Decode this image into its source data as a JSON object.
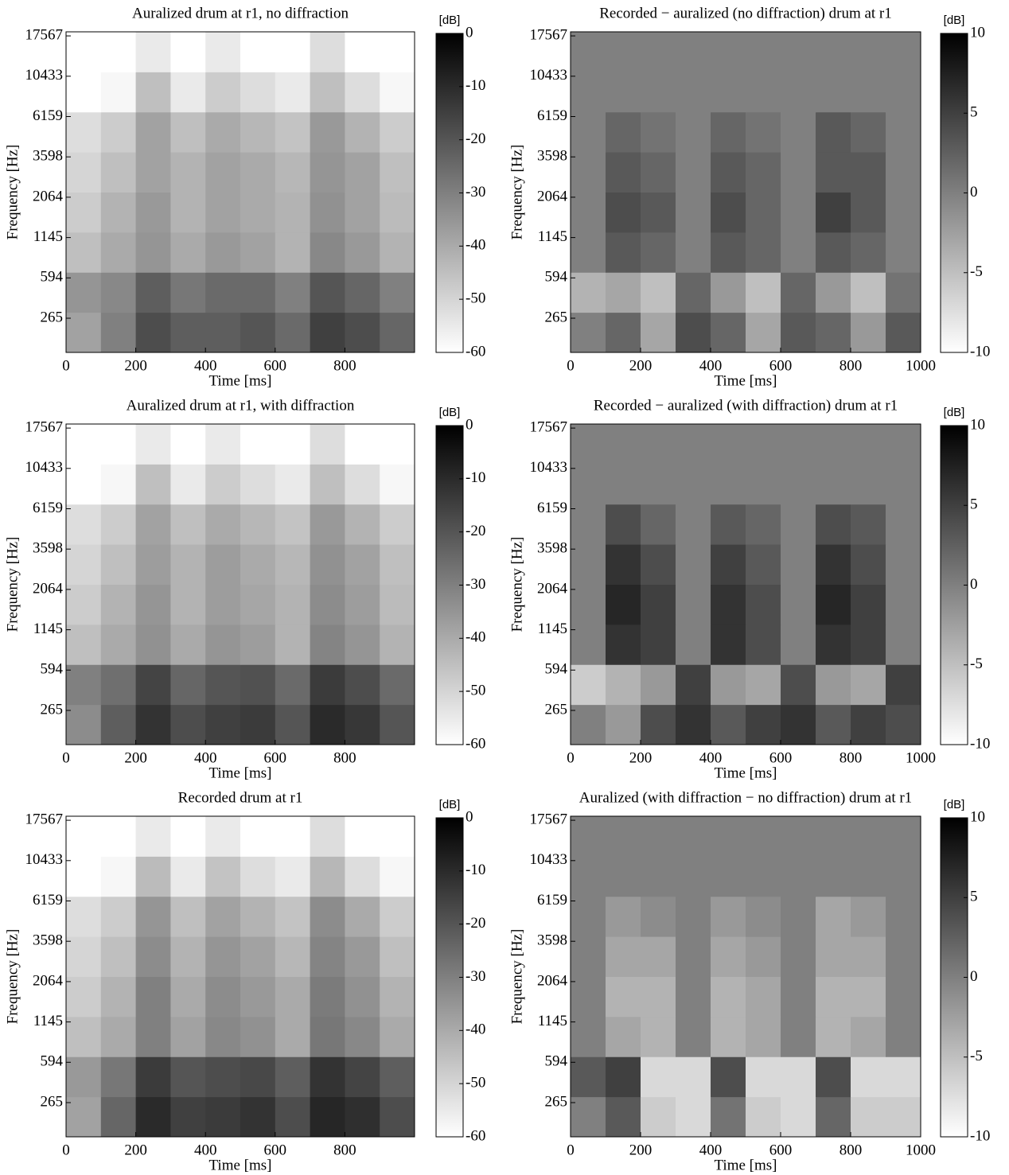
{
  "chart_data": [
    {
      "type": "heatmap",
      "title": "Auralized drum at r1, no diffraction",
      "xlabel": "Time [ms]",
      "ylabel": "Frequency [Hz]",
      "xlim": [
        0,
        1000
      ],
      "xticks": [
        0,
        200,
        400,
        600,
        800
      ],
      "yticks": [
        265,
        594,
        1145,
        2064,
        3598,
        6159,
        10433,
        17567
      ],
      "x": [
        50,
        150,
        250,
        350,
        450,
        550,
        650,
        750,
        850,
        950
      ],
      "colormap": "gray_r",
      "clim": [
        -60,
        0
      ],
      "cticks": [
        0,
        -10,
        -20,
        -30,
        -40,
        -50,
        -60
      ],
      "clabel": "[dB]",
      "z": [
        [
          -38,
          -30,
          -18,
          -22,
          -22,
          -20,
          -25,
          -15,
          -18,
          -24
        ],
        [
          -35,
          -32,
          -22,
          -28,
          -25,
          -25,
          -30,
          -20,
          -24,
          -30
        ],
        [
          -45,
          -40,
          -35,
          -40,
          -36,
          -38,
          -42,
          -32,
          -36,
          -42
        ],
        [
          -48,
          -42,
          -36,
          -42,
          -38,
          -40,
          -42,
          -34,
          -38,
          -44
        ],
        [
          -50,
          -45,
          -38,
          -42,
          -38,
          -40,
          -43,
          -35,
          -38,
          -45
        ],
        [
          -52,
          -48,
          -38,
          -45,
          -40,
          -43,
          -46,
          -36,
          -42,
          -48
        ],
        [
          -60,
          -58,
          -45,
          -55,
          -48,
          -52,
          -55,
          -45,
          -52,
          -58
        ],
        [
          -60,
          -60,
          -55,
          -60,
          -55,
          -60,
          -60,
          -52,
          -60,
          -60
        ]
      ]
    },
    {
      "type": "heatmap",
      "title": "Recorded − auralized (no diffraction) drum at r1",
      "xlabel": "Time [ms]",
      "ylabel": "Frequency [Hz]",
      "xlim": [
        0,
        1000
      ],
      "xticks": [
        0,
        200,
        400,
        600,
        800,
        1000
      ],
      "yticks": [
        265,
        594,
        1145,
        2064,
        3598,
        6159,
        10433,
        17567
      ],
      "x": [
        50,
        150,
        250,
        350,
        450,
        550,
        650,
        750,
        850,
        950
      ],
      "colormap": "gray_r",
      "clim": [
        -10,
        10
      ],
      "cticks": [
        10,
        5,
        0,
        -5,
        -10
      ],
      "clabel": "[dB]",
      "z": [
        [
          0,
          2,
          -3,
          4,
          2,
          -3,
          3,
          2,
          -2,
          3
        ],
        [
          -4,
          -3,
          -5,
          2,
          -2,
          -5,
          2,
          -2,
          -5,
          1
        ],
        [
          0,
          3,
          2,
          0,
          3,
          2,
          0,
          3,
          2,
          0
        ],
        [
          0,
          4,
          3,
          0,
          4,
          2,
          0,
          5,
          3,
          0
        ],
        [
          0,
          3,
          2,
          0,
          3,
          2,
          0,
          3,
          3,
          0
        ],
        [
          0,
          2,
          1,
          0,
          2,
          1,
          0,
          3,
          2,
          0
        ],
        [
          0,
          0,
          0,
          0,
          0,
          0,
          0,
          0,
          0,
          0
        ],
        [
          0,
          0,
          0,
          0,
          0,
          0,
          0,
          0,
          0,
          0
        ]
      ]
    },
    {
      "type": "heatmap",
      "title": "Auralized drum at r1, with diffraction",
      "xlabel": "Time [ms]",
      "ylabel": "Frequency [Hz]",
      "xlim": [
        0,
        1000
      ],
      "xticks": [
        0,
        200,
        400,
        600,
        800
      ],
      "yticks": [
        265,
        594,
        1145,
        2064,
        3598,
        6159,
        10433,
        17567
      ],
      "x": [
        50,
        150,
        250,
        350,
        450,
        550,
        650,
        750,
        850,
        950
      ],
      "colormap": "gray_r",
      "clim": [
        -60,
        0
      ],
      "cticks": [
        0,
        -10,
        -20,
        -30,
        -40,
        -50,
        -60
      ],
      "clabel": "[dB]",
      "z": [
        [
          -33,
          -22,
          -12,
          -18,
          -15,
          -14,
          -20,
          -10,
          -13,
          -20
        ],
        [
          -30,
          -26,
          -16,
          -24,
          -20,
          -19,
          -25,
          -14,
          -18,
          -25
        ],
        [
          -45,
          -40,
          -34,
          -40,
          -35,
          -37,
          -42,
          -31,
          -35,
          -42
        ],
        [
          -48,
          -42,
          -35,
          -42,
          -37,
          -39,
          -42,
          -33,
          -37,
          -44
        ],
        [
          -50,
          -45,
          -37,
          -42,
          -37,
          -40,
          -43,
          -34,
          -38,
          -45
        ],
        [
          -52,
          -48,
          -38,
          -45,
          -40,
          -43,
          -46,
          -36,
          -42,
          -48
        ],
        [
          -60,
          -58,
          -45,
          -55,
          -48,
          -52,
          -55,
          -45,
          -52,
          -58
        ],
        [
          -60,
          -60,
          -55,
          -60,
          -55,
          -60,
          -60,
          -52,
          -60,
          -60
        ]
      ]
    },
    {
      "type": "heatmap",
      "title": "Recorded − auralized (with diffraction) drum at r1",
      "xlabel": "Time [ms]",
      "ylabel": "Frequency [Hz]",
      "xlim": [
        0,
        1000
      ],
      "xticks": [
        0,
        200,
        400,
        600,
        800,
        1000
      ],
      "yticks": [
        265,
        594,
        1145,
        2064,
        3598,
        6159,
        10433,
        17567
      ],
      "x": [
        50,
        150,
        250,
        350,
        450,
        550,
        650,
        750,
        850,
        950
      ],
      "colormap": "gray_r",
      "clim": [
        -10,
        10
      ],
      "cticks": [
        10,
        5,
        0,
        -5,
        -10
      ],
      "clabel": "[dB]",
      "z": [
        [
          0,
          -2,
          4,
          6,
          3,
          5,
          6,
          3,
          5,
          4
        ],
        [
          -6,
          -4,
          -2,
          5,
          -2,
          -3,
          4,
          -2,
          -3,
          5
        ],
        [
          0,
          6,
          5,
          0,
          6,
          4,
          0,
          6,
          5,
          0
        ],
        [
          0,
          7,
          5,
          0,
          6,
          4,
          0,
          7,
          5,
          0
        ],
        [
          0,
          6,
          4,
          0,
          5,
          3,
          0,
          6,
          4,
          0
        ],
        [
          0,
          4,
          2,
          0,
          3,
          2,
          0,
          4,
          3,
          0
        ],
        [
          0,
          0,
          0,
          0,
          0,
          0,
          0,
          0,
          0,
          0
        ],
        [
          0,
          0,
          0,
          0,
          0,
          0,
          0,
          0,
          0,
          0
        ]
      ]
    },
    {
      "type": "heatmap",
      "title": "Recorded drum at r1",
      "xlabel": "Time [ms]",
      "ylabel": "Frequency [Hz]",
      "xlim": [
        0,
        1000
      ],
      "xticks": [
        0,
        200,
        400,
        600,
        800
      ],
      "yticks": [
        265,
        594,
        1145,
        2064,
        3598,
        6159,
        10433,
        17567
      ],
      "x": [
        50,
        150,
        250,
        350,
        450,
        550,
        650,
        750,
        850,
        950
      ],
      "colormap": "gray_r",
      "clim": [
        -60,
        0
      ],
      "cticks": [
        0,
        -10,
        -20,
        -30,
        -40,
        -50,
        -60
      ],
      "clabel": "[dB]",
      "z": [
        [
          -38,
          -24,
          -10,
          -15,
          -14,
          -12,
          -18,
          -9,
          -11,
          -18
        ],
        [
          -36,
          -28,
          -14,
          -20,
          -18,
          -17,
          -22,
          -12,
          -16,
          -22
        ],
        [
          -45,
          -40,
          -30,
          -38,
          -32,
          -34,
          -40,
          -28,
          -32,
          -40
        ],
        [
          -48,
          -42,
          -30,
          -40,
          -33,
          -36,
          -40,
          -29,
          -34,
          -42
        ],
        [
          -50,
          -45,
          -33,
          -42,
          -35,
          -38,
          -43,
          -31,
          -36,
          -45
        ],
        [
          -52,
          -48,
          -35,
          -45,
          -38,
          -42,
          -46,
          -33,
          -40,
          -48
        ],
        [
          -60,
          -58,
          -44,
          -55,
          -46,
          -52,
          -55,
          -43,
          -52,
          -58
        ],
        [
          -60,
          -60,
          -55,
          -60,
          -55,
          -60,
          -60,
          -52,
          -60,
          -60
        ]
      ]
    },
    {
      "type": "heatmap",
      "title": "Auralized (with diffraction − no diffraction) drum at r1",
      "xlabel": "Time [ms]",
      "ylabel": "Frequency [Hz]",
      "xlim": [
        0,
        1000
      ],
      "xticks": [
        0,
        200,
        400,
        600,
        800,
        1000
      ],
      "yticks": [
        265,
        594,
        1145,
        2064,
        3598,
        6159,
        10433,
        17567
      ],
      "x": [
        50,
        150,
        250,
        350,
        450,
        550,
        650,
        750,
        850,
        950
      ],
      "colormap": "gray_r",
      "clim": [
        -10,
        10
      ],
      "cticks": [
        10,
        5,
        0,
        -5,
        -10
      ],
      "clabel": "[dB]",
      "z": [
        [
          0,
          3,
          -6,
          -7,
          1,
          -6,
          -7,
          2,
          -6,
          -6
        ],
        [
          3,
          5,
          -7,
          -7,
          4,
          -7,
          -7,
          4,
          -7,
          -7
        ],
        [
          0,
          -3,
          -4,
          0,
          -4,
          -3,
          0,
          -4,
          -3,
          0
        ],
        [
          0,
          -4,
          -4,
          0,
          -4,
          -3,
          0,
          -4,
          -4,
          0
        ],
        [
          0,
          -3,
          -3,
          0,
          -3,
          -2,
          0,
          -3,
          -3,
          0
        ],
        [
          0,
          -2,
          -1,
          0,
          -2,
          -1,
          0,
          -3,
          -2,
          0
        ],
        [
          0,
          0,
          0,
          0,
          0,
          0,
          0,
          0,
          0,
          0
        ],
        [
          0,
          0,
          0,
          0,
          0,
          0,
          0,
          0,
          0,
          0
        ]
      ]
    }
  ]
}
